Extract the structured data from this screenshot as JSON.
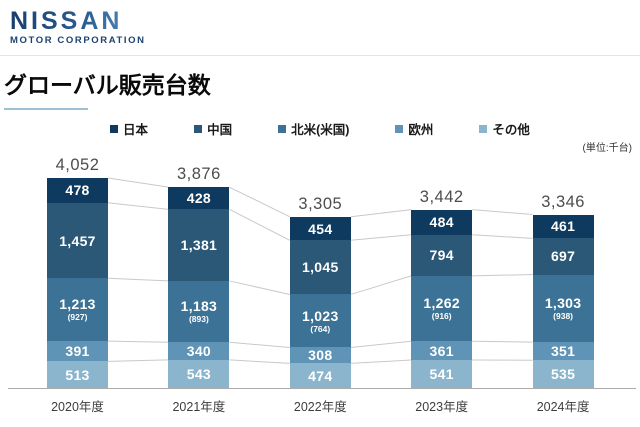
{
  "header": {
    "logo_line1": "NISSAN",
    "logo_line2": "MOTOR CORPORATION"
  },
  "title": "グローバル販売台数",
  "unit_note": "(単位:千台)",
  "chart_data": {
    "type": "bar",
    "stacked": true,
    "title": "グローバル販売台数",
    "unit": "千台",
    "legend_position": "top",
    "categories": [
      "2020年度",
      "2021年度",
      "2022年度",
      "2023年度",
      "2024年度"
    ],
    "totals": [
      4052,
      3876,
      3305,
      3442,
      3346
    ],
    "series": [
      {
        "name": "日本",
        "color": "#0d3a5e",
        "values": [
          478,
          428,
          454,
          484,
          461
        ]
      },
      {
        "name": "中国",
        "color": "#2b5876",
        "values": [
          1457,
          1381,
          1045,
          794,
          697
        ]
      },
      {
        "name": "北米(米国)",
        "color": "#3c7295",
        "values": [
          1213,
          1183,
          1023,
          1262,
          1303
        ],
        "sub_values": [
          "(927)",
          "(893)",
          "(764)",
          "(916)",
          "(938)"
        ]
      },
      {
        "name": "欧州",
        "color": "#5f94b6",
        "values": [
          391,
          340,
          308,
          361,
          351
        ]
      },
      {
        "name": "その他",
        "color": "#8ab5cd",
        "values": [
          513,
          543,
          474,
          541,
          535
        ]
      }
    ],
    "connector_lines": true,
    "baseline": true
  }
}
